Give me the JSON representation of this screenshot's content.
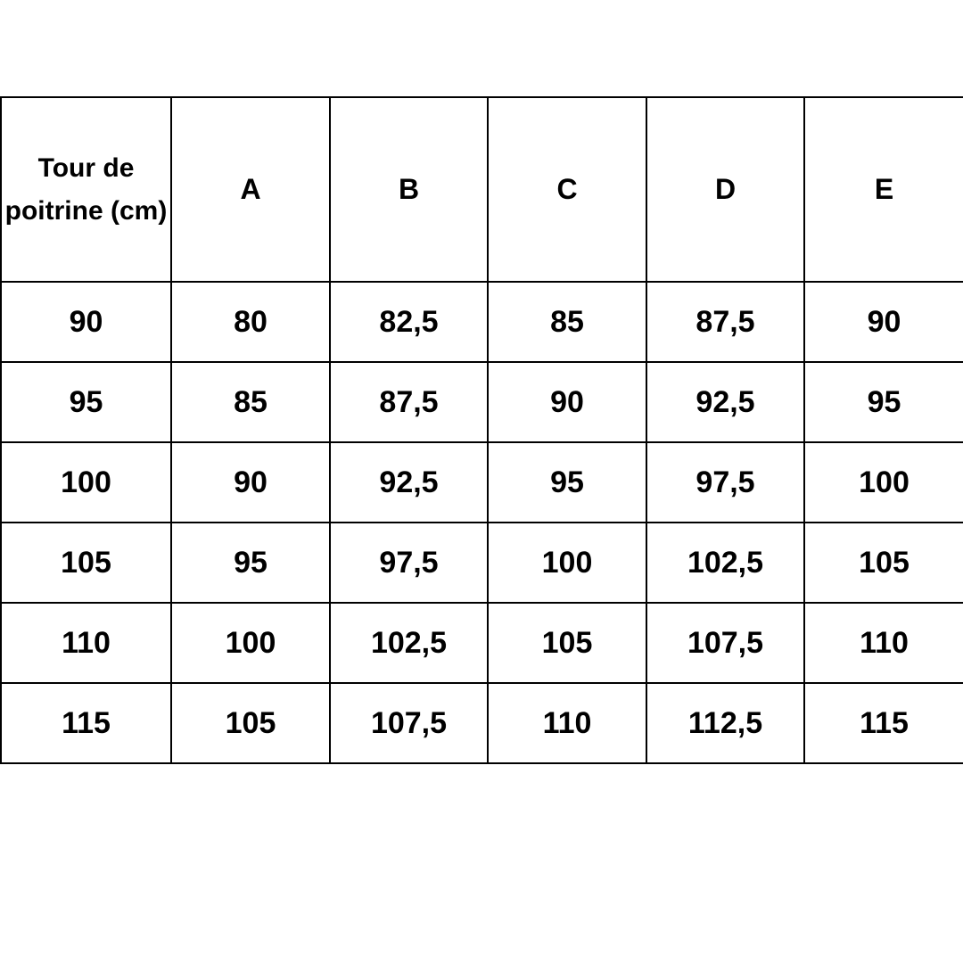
{
  "table": {
    "headers": [
      "Tour de poitrine (cm)",
      "A",
      "B",
      "C",
      "D",
      "E"
    ],
    "rows": [
      [
        "90",
        "80",
        "82,5",
        "85",
        "87,5",
        "90"
      ],
      [
        "95",
        "85",
        "87,5",
        "90",
        "92,5",
        "95"
      ],
      [
        "100",
        "90",
        "92,5",
        "95",
        "97,5",
        "100"
      ],
      [
        "105",
        "95",
        "97,5",
        "100",
        "102,5",
        "105"
      ],
      [
        "110",
        "100",
        "102,5",
        "105",
        "107,5",
        "110"
      ],
      [
        "115",
        "105",
        "107,5",
        "110",
        "112,5",
        "115"
      ]
    ]
  }
}
